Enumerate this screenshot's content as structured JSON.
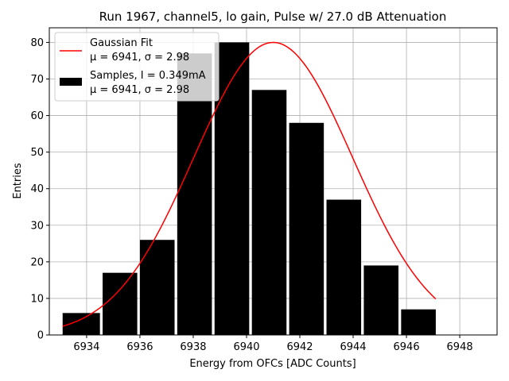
{
  "chart_data": {
    "type": "bar",
    "title": "Run 1967, channel5, lo gain, Pulse w/ 27.0 dB Attenuation",
    "xlabel": "Energy from OFCs [ADC Counts]",
    "ylabel": "Entries",
    "xlim": [
      6932.6,
      6949.4
    ],
    "ylim": [
      0,
      84
    ],
    "xticks": [
      6934,
      6936,
      6938,
      6940,
      6942,
      6944,
      6946,
      6948
    ],
    "yticks": [
      0,
      10,
      20,
      30,
      40,
      50,
      60,
      70,
      80
    ],
    "grid": true,
    "legend_position": "top-left",
    "bins": [
      {
        "x0": 6933.1,
        "x1": 6934.5,
        "count": 6
      },
      {
        "x0": 6934.6,
        "x1": 6935.9,
        "count": 17
      },
      {
        "x0": 6936.0,
        "x1": 6937.3,
        "count": 26
      },
      {
        "x0": 6937.4,
        "x1": 6938.7,
        "count": 77
      },
      {
        "x0": 6938.8,
        "x1": 6940.1,
        "count": 80
      },
      {
        "x0": 6940.2,
        "x1": 6941.5,
        "count": 67
      },
      {
        "x0": 6941.6,
        "x1": 6942.9,
        "count": 58
      },
      {
        "x0": 6943.0,
        "x1": 6944.3,
        "count": 37
      },
      {
        "x0": 6944.4,
        "x1": 6945.7,
        "count": 19
      },
      {
        "x0": 6945.8,
        "x1": 6947.1,
        "count": 7
      }
    ],
    "series": [
      {
        "name": "Gaussian Fit",
        "kind": "line",
        "color": "#ff0000",
        "mu": 6941,
        "sigma": 2.98,
        "amplitude": 80
      },
      {
        "name": "Samples, I = 0.349mA",
        "kind": "bar",
        "color": "#000000"
      }
    ],
    "legend": [
      {
        "line1": "Gaussian Fit",
        "line2": "μ = 6941, σ = 2.98"
      },
      {
        "line1": "Samples, I = 0.349mA",
        "line2": "μ = 6941, σ = 2.98"
      }
    ]
  }
}
